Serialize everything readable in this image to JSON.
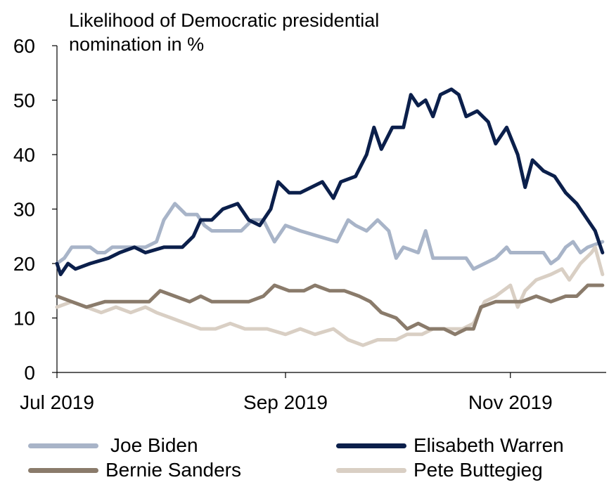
{
  "chart_data": {
    "type": "line",
    "title": [
      "Likelihood of Democratic presidential",
      "nomination in %"
    ],
    "ylim": [
      0,
      60
    ],
    "yticks": [
      "0",
      "10",
      "20",
      "30",
      "40",
      "50",
      "60"
    ],
    "xlim": [
      "2019-07-01",
      "2019-11-26"
    ],
    "xticks": [
      {
        "label": "Jul 2019",
        "date": "2019-07-01"
      },
      {
        "label": "Sep 2019",
        "date": "2019-09-01"
      },
      {
        "label": "Nov 2019",
        "date": "2019-11-01"
      }
    ],
    "legend_position": "bottom",
    "series": [
      {
        "name": "Joe Biden",
        "color": "#a8b4c8",
        "points": [
          [
            "2019-07-01",
            20
          ],
          [
            "2019-07-03",
            21
          ],
          [
            "2019-07-05",
            23
          ],
          [
            "2019-07-10",
            23
          ],
          [
            "2019-07-12",
            22
          ],
          [
            "2019-07-14",
            22
          ],
          [
            "2019-07-16",
            23
          ],
          [
            "2019-07-25",
            23
          ],
          [
            "2019-07-28",
            24
          ],
          [
            "2019-07-30",
            28
          ],
          [
            "2019-08-02",
            31
          ],
          [
            "2019-08-05",
            29
          ],
          [
            "2019-08-08",
            29
          ],
          [
            "2019-08-10",
            27
          ],
          [
            "2019-08-12",
            26
          ],
          [
            "2019-08-20",
            26
          ],
          [
            "2019-08-23",
            28
          ],
          [
            "2019-08-26",
            28
          ],
          [
            "2019-08-29",
            24
          ],
          [
            "2019-09-01",
            27
          ],
          [
            "2019-09-05",
            26
          ],
          [
            "2019-09-10",
            25
          ],
          [
            "2019-09-15",
            24
          ],
          [
            "2019-09-18",
            28
          ],
          [
            "2019-09-20",
            27
          ],
          [
            "2019-09-23",
            26
          ],
          [
            "2019-09-26",
            28
          ],
          [
            "2019-09-29",
            26
          ],
          [
            "2019-10-01",
            21
          ],
          [
            "2019-10-03",
            23
          ],
          [
            "2019-10-07",
            22
          ],
          [
            "2019-10-09",
            26
          ],
          [
            "2019-10-11",
            21
          ],
          [
            "2019-10-14",
            21
          ],
          [
            "2019-10-20",
            21
          ],
          [
            "2019-10-22",
            19
          ],
          [
            "2019-10-25",
            20
          ],
          [
            "2019-10-28",
            21
          ],
          [
            "2019-10-31",
            23
          ],
          [
            "2019-11-01",
            22
          ],
          [
            "2019-11-05",
            22
          ],
          [
            "2019-11-08",
            22
          ],
          [
            "2019-11-10",
            22
          ],
          [
            "2019-11-12",
            20
          ],
          [
            "2019-11-14",
            21
          ],
          [
            "2019-11-16",
            23
          ],
          [
            "2019-11-18",
            24
          ],
          [
            "2019-11-20",
            22
          ],
          [
            "2019-11-22",
            23
          ],
          [
            "2019-11-26",
            24
          ]
        ]
      },
      {
        "name": "Elisabeth Warren",
        "color": "#0b1f4b",
        "points": [
          [
            "2019-07-01",
            20
          ],
          [
            "2019-07-02",
            18
          ],
          [
            "2019-07-04",
            20
          ],
          [
            "2019-07-06",
            19
          ],
          [
            "2019-07-10",
            20
          ],
          [
            "2019-07-15",
            21
          ],
          [
            "2019-07-18",
            22
          ],
          [
            "2019-07-22",
            23
          ],
          [
            "2019-07-25",
            22
          ],
          [
            "2019-07-30",
            23
          ],
          [
            "2019-08-04",
            23
          ],
          [
            "2019-08-07",
            25
          ],
          [
            "2019-08-09",
            28
          ],
          [
            "2019-08-12",
            28
          ],
          [
            "2019-08-15",
            30
          ],
          [
            "2019-08-19",
            31
          ],
          [
            "2019-08-22",
            28
          ],
          [
            "2019-08-25",
            27
          ],
          [
            "2019-08-28",
            30
          ],
          [
            "2019-08-30",
            35
          ],
          [
            "2019-09-02",
            33
          ],
          [
            "2019-09-05",
            33
          ],
          [
            "2019-09-08",
            34
          ],
          [
            "2019-09-11",
            35
          ],
          [
            "2019-09-14",
            32
          ],
          [
            "2019-09-16",
            35
          ],
          [
            "2019-09-20",
            36
          ],
          [
            "2019-09-23",
            40
          ],
          [
            "2019-09-25",
            45
          ],
          [
            "2019-09-27",
            41
          ],
          [
            "2019-09-30",
            45
          ],
          [
            "2019-10-03",
            45
          ],
          [
            "2019-10-05",
            51
          ],
          [
            "2019-10-07",
            49
          ],
          [
            "2019-10-09",
            50
          ],
          [
            "2019-10-11",
            47
          ],
          [
            "2019-10-13",
            51
          ],
          [
            "2019-10-16",
            52
          ],
          [
            "2019-10-18",
            51
          ],
          [
            "2019-10-20",
            47
          ],
          [
            "2019-10-23",
            48
          ],
          [
            "2019-10-26",
            46
          ],
          [
            "2019-10-28",
            42
          ],
          [
            "2019-10-31",
            45
          ],
          [
            "2019-11-03",
            40
          ],
          [
            "2019-11-05",
            34
          ],
          [
            "2019-11-07",
            39
          ],
          [
            "2019-11-10",
            37
          ],
          [
            "2019-11-13",
            36
          ],
          [
            "2019-11-16",
            33
          ],
          [
            "2019-11-19",
            31
          ],
          [
            "2019-11-22",
            28
          ],
          [
            "2019-11-24",
            26
          ],
          [
            "2019-11-26",
            22
          ]
        ]
      },
      {
        "name": "Bernie Sanders",
        "color": "#8a7b6b",
        "points": [
          [
            "2019-07-01",
            14
          ],
          [
            "2019-07-05",
            13
          ],
          [
            "2019-07-09",
            12
          ],
          [
            "2019-07-14",
            13
          ],
          [
            "2019-07-20",
            13
          ],
          [
            "2019-07-26",
            13
          ],
          [
            "2019-07-29",
            15
          ],
          [
            "2019-08-02",
            14
          ],
          [
            "2019-08-06",
            13
          ],
          [
            "2019-08-09",
            14
          ],
          [
            "2019-08-12",
            13
          ],
          [
            "2019-08-17",
            13
          ],
          [
            "2019-08-22",
            13
          ],
          [
            "2019-08-26",
            14
          ],
          [
            "2019-08-29",
            16
          ],
          [
            "2019-09-02",
            15
          ],
          [
            "2019-09-06",
            15
          ],
          [
            "2019-09-09",
            16
          ],
          [
            "2019-09-13",
            15
          ],
          [
            "2019-09-17",
            15
          ],
          [
            "2019-09-21",
            14
          ],
          [
            "2019-09-24",
            13
          ],
          [
            "2019-09-27",
            11
          ],
          [
            "2019-10-01",
            10
          ],
          [
            "2019-10-04",
            8
          ],
          [
            "2019-10-07",
            9
          ],
          [
            "2019-10-10",
            8
          ],
          [
            "2019-10-14",
            8
          ],
          [
            "2019-10-17",
            7
          ],
          [
            "2019-10-20",
            8
          ],
          [
            "2019-10-22",
            8
          ],
          [
            "2019-10-24",
            12
          ],
          [
            "2019-10-28",
            13
          ],
          [
            "2019-11-01",
            13
          ],
          [
            "2019-11-04",
            13
          ],
          [
            "2019-11-08",
            14
          ],
          [
            "2019-11-12",
            13
          ],
          [
            "2019-11-16",
            14
          ],
          [
            "2019-11-19",
            14
          ],
          [
            "2019-11-22",
            16
          ],
          [
            "2019-11-26",
            16
          ]
        ]
      },
      {
        "name": "Pete Buttegieg",
        "color": "#d9cfc4",
        "points": [
          [
            "2019-07-01",
            12
          ],
          [
            "2019-07-05",
            13
          ],
          [
            "2019-07-09",
            12
          ],
          [
            "2019-07-13",
            11
          ],
          [
            "2019-07-17",
            12
          ],
          [
            "2019-07-21",
            11
          ],
          [
            "2019-07-25",
            12
          ],
          [
            "2019-07-28",
            11
          ],
          [
            "2019-08-01",
            10
          ],
          [
            "2019-08-05",
            9
          ],
          [
            "2019-08-09",
            8
          ],
          [
            "2019-08-13",
            8
          ],
          [
            "2019-08-17",
            9
          ],
          [
            "2019-08-21",
            8
          ],
          [
            "2019-08-27",
            8
          ],
          [
            "2019-09-01",
            7
          ],
          [
            "2019-09-05",
            8
          ],
          [
            "2019-09-09",
            7
          ],
          [
            "2019-09-14",
            8
          ],
          [
            "2019-09-18",
            6
          ],
          [
            "2019-09-22",
            5
          ],
          [
            "2019-09-26",
            6
          ],
          [
            "2019-10-01",
            6
          ],
          [
            "2019-10-04",
            7
          ],
          [
            "2019-10-08",
            7
          ],
          [
            "2019-10-11",
            8
          ],
          [
            "2019-10-15",
            8
          ],
          [
            "2019-10-19",
            8
          ],
          [
            "2019-10-22",
            9
          ],
          [
            "2019-10-25",
            13
          ],
          [
            "2019-10-28",
            14
          ],
          [
            "2019-11-01",
            16
          ],
          [
            "2019-11-03",
            12
          ],
          [
            "2019-11-05",
            15
          ],
          [
            "2019-11-08",
            17
          ],
          [
            "2019-11-12",
            18
          ],
          [
            "2019-11-15",
            19
          ],
          [
            "2019-11-17",
            17
          ],
          [
            "2019-11-20",
            20
          ],
          [
            "2019-11-23",
            22
          ],
          [
            "2019-11-24",
            23
          ],
          [
            "2019-11-26",
            18
          ]
        ]
      }
    ]
  }
}
